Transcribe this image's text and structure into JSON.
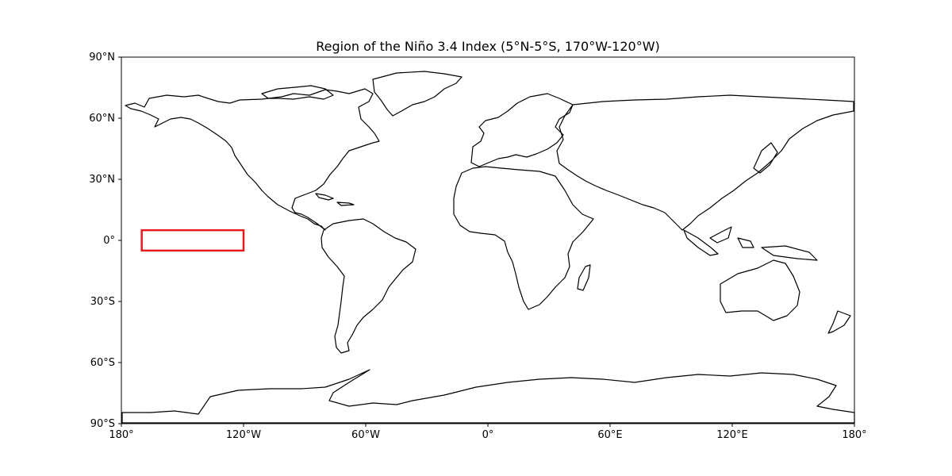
{
  "chart_data": {
    "type": "map",
    "title": "Region of the Niño 3.4 Index (5°N-5°S, 170°W-120°W)",
    "projection": "PlateCarree",
    "xlim": [
      -180,
      180
    ],
    "ylim": [
      -90,
      90
    ],
    "x_ticks": [
      {
        "value": -180,
        "label": "180°"
      },
      {
        "value": -120,
        "label": "120°W"
      },
      {
        "value": -60,
        "label": "60°W"
      },
      {
        "value": 0,
        "label": "0°"
      },
      {
        "value": 60,
        "label": "60°E"
      },
      {
        "value": 120,
        "label": "120°E"
      },
      {
        "value": 180,
        "label": "180°"
      }
    ],
    "y_ticks": [
      {
        "value": 90,
        "label": "90°N"
      },
      {
        "value": 60,
        "label": "60°N"
      },
      {
        "value": 30,
        "label": "30°N"
      },
      {
        "value": 0,
        "label": "0°"
      },
      {
        "value": -30,
        "label": "30°S"
      },
      {
        "value": -60,
        "label": "60°S"
      },
      {
        "value": -90,
        "label": "90°S"
      }
    ],
    "region": {
      "lon_min": -170,
      "lon_max": -120,
      "lat_min": -5,
      "lat_max": 5,
      "color": "#e41a1c"
    },
    "coastline_color": "#000000",
    "grid": false
  }
}
